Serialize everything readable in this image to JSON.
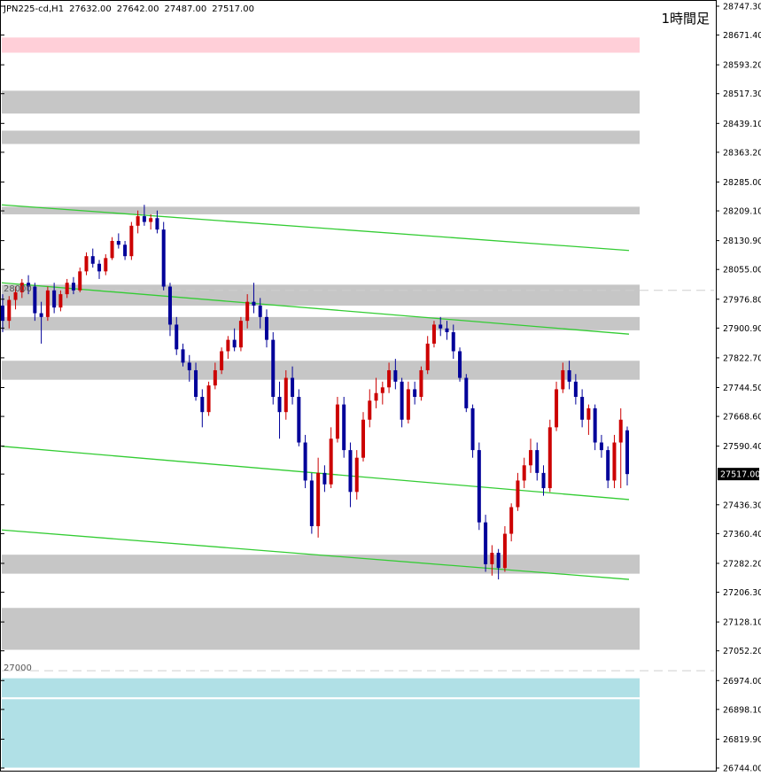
{
  "header": {
    "symbol": "JPN225-cd,H1",
    "open": "27632.00",
    "high": "27642.00",
    "low": "27487.00",
    "close": "27517.00"
  },
  "timeframe_label": "1時間足",
  "level_labels": {
    "upper": "28000",
    "lower": "27000"
  },
  "current_price": "27517.00",
  "colors": {
    "bull": "#cc0000",
    "bear": "#000099",
    "doji": "#33aa33",
    "channel": "#33cc33",
    "zone_gray": "#c6c6c6",
    "zone_pink": "#ffcfd8",
    "zone_blue": "#b0e0e6",
    "dashed": "#cfcfcf"
  },
  "chart_data": {
    "type": "candlestick",
    "symbol": "JPN225-cd",
    "timeframe": "H1",
    "ylim": [
      26744.0,
      28747.3
    ],
    "y_ticks": [
      "28747.30",
      "28671.40",
      "28593.20",
      "28517.30",
      "28439.10",
      "28363.20",
      "28285.00",
      "28209.10",
      "28130.90",
      "28055.00",
      "27976.80",
      "27900.90",
      "27822.70",
      "27744.50",
      "27668.60",
      "27590.40",
      "27517.00",
      "27436.30",
      "27360.40",
      "27282.20",
      "27206.30",
      "27128.10",
      "27052.20",
      "26974.00",
      "26898.10",
      "26819.90",
      "26744.00"
    ],
    "horizontal_levels": [
      28000,
      27000
    ],
    "zones": [
      {
        "low": 28625,
        "high": 28665,
        "color": "pink"
      },
      {
        "low": 28465,
        "high": 28525,
        "color": "gray"
      },
      {
        "low": 28385,
        "high": 28420,
        "color": "gray"
      },
      {
        "low": 28200,
        "high": 28220,
        "color": "gray"
      },
      {
        "low": 27960,
        "high": 28015,
        "color": "gray"
      },
      {
        "low": 27895,
        "high": 27930,
        "color": "gray"
      },
      {
        "low": 27765,
        "high": 27815,
        "color": "gray"
      },
      {
        "low": 27255,
        "high": 27305,
        "color": "gray"
      },
      {
        "low": 27055,
        "high": 27165,
        "color": "gray"
      },
      {
        "low": 26745,
        "high": 26925,
        "color": "blue"
      },
      {
        "low": 26930,
        "high": 26980,
        "color": "blue"
      }
    ],
    "channel_lines": [
      {
        "from": 28225,
        "to": 28105
      },
      {
        "from": 28020,
        "to": 27885
      },
      {
        "from": 27590,
        "to": 27450
      },
      {
        "from": 27370,
        "to": 27240
      }
    ],
    "candles": [
      {
        "o": 27960,
        "h": 27990,
        "l": 27890,
        "c": 27920
      },
      {
        "o": 27920,
        "h": 27985,
        "l": 27900,
        "c": 27975
      },
      {
        "o": 27975,
        "h": 28010,
        "l": 27950,
        "c": 27995
      },
      {
        "o": 27995,
        "h": 28030,
        "l": 27980,
        "c": 28020
      },
      {
        "o": 28020,
        "h": 28040,
        "l": 27990,
        "c": 28010
      },
      {
        "o": 28010,
        "h": 28020,
        "l": 27920,
        "c": 27940
      },
      {
        "o": 27940,
        "h": 27970,
        "l": 27860,
        "c": 27930
      },
      {
        "o": 27930,
        "h": 28010,
        "l": 27920,
        "c": 28000
      },
      {
        "o": 28000,
        "h": 28020,
        "l": 27940,
        "c": 27955
      },
      {
        "o": 27955,
        "h": 28000,
        "l": 27945,
        "c": 27990
      },
      {
        "o": 27990,
        "h": 28030,
        "l": 27980,
        "c": 28020
      },
      {
        "o": 28020,
        "h": 28035,
        "l": 27990,
        "c": 28000
      },
      {
        "o": 28000,
        "h": 28060,
        "l": 27995,
        "c": 28050
      },
      {
        "o": 28050,
        "h": 28100,
        "l": 28040,
        "c": 28090
      },
      {
        "o": 28090,
        "h": 28110,
        "l": 28060,
        "c": 28070
      },
      {
        "o": 28070,
        "h": 28080,
        "l": 28030,
        "c": 28050
      },
      {
        "o": 28050,
        "h": 28095,
        "l": 28040,
        "c": 28085
      },
      {
        "o": 28085,
        "h": 28140,
        "l": 28080,
        "c": 28130
      },
      {
        "o": 28130,
        "h": 28150,
        "l": 28110,
        "c": 28120
      },
      {
        "o": 28120,
        "h": 28130,
        "l": 28080,
        "c": 28090
      },
      {
        "o": 28090,
        "h": 28180,
        "l": 28080,
        "c": 28170
      },
      {
        "o": 28170,
        "h": 28210,
        "l": 28150,
        "c": 28195
      },
      {
        "o": 28195,
        "h": 28225,
        "l": 28170,
        "c": 28180
      },
      {
        "o": 28180,
        "h": 28200,
        "l": 28160,
        "c": 28190
      },
      {
        "o": 28190,
        "h": 28210,
        "l": 28150,
        "c": 28160
      },
      {
        "o": 28160,
        "h": 28180,
        "l": 28000,
        "c": 28010
      },
      {
        "o": 28010,
        "h": 28020,
        "l": 27880,
        "c": 27910
      },
      {
        "o": 27910,
        "h": 27930,
        "l": 27830,
        "c": 27845
      },
      {
        "o": 27845,
        "h": 27860,
        "l": 27800,
        "c": 27810
      },
      {
        "o": 27810,
        "h": 27830,
        "l": 27760,
        "c": 27790
      },
      {
        "o": 27790,
        "h": 27810,
        "l": 27710,
        "c": 27720
      },
      {
        "o": 27720,
        "h": 27740,
        "l": 27640,
        "c": 27680
      },
      {
        "o": 27680,
        "h": 27760,
        "l": 27670,
        "c": 27750
      },
      {
        "o": 27750,
        "h": 27810,
        "l": 27740,
        "c": 27790
      },
      {
        "o": 27790,
        "h": 27850,
        "l": 27780,
        "c": 27840
      },
      {
        "o": 27840,
        "h": 27880,
        "l": 27820,
        "c": 27870
      },
      {
        "o": 27870,
        "h": 27900,
        "l": 27840,
        "c": 27850
      },
      {
        "o": 27850,
        "h": 27930,
        "l": 27840,
        "c": 27920
      },
      {
        "o": 27920,
        "h": 27990,
        "l": 27900,
        "c": 27970
      },
      {
        "o": 27970,
        "h": 28020,
        "l": 27940,
        "c": 27960
      },
      {
        "o": 27960,
        "h": 27980,
        "l": 27900,
        "c": 27930
      },
      {
        "o": 27930,
        "h": 27950,
        "l": 27850,
        "c": 27870
      },
      {
        "o": 27870,
        "h": 27890,
        "l": 27700,
        "c": 27720
      },
      {
        "o": 27720,
        "h": 27760,
        "l": 27610,
        "c": 27680
      },
      {
        "o": 27680,
        "h": 27790,
        "l": 27660,
        "c": 27770
      },
      {
        "o": 27770,
        "h": 27800,
        "l": 27700,
        "c": 27720
      },
      {
        "o": 27720,
        "h": 27740,
        "l": 27590,
        "c": 27600
      },
      {
        "o": 27600,
        "h": 27620,
        "l": 27480,
        "c": 27500
      },
      {
        "o": 27500,
        "h": 27520,
        "l": 27360,
        "c": 27380
      },
      {
        "o": 27380,
        "h": 27560,
        "l": 27350,
        "c": 27520
      },
      {
        "o": 27520,
        "h": 27540,
        "l": 27470,
        "c": 27490
      },
      {
        "o": 27490,
        "h": 27640,
        "l": 27480,
        "c": 27610
      },
      {
        "o": 27610,
        "h": 27720,
        "l": 27600,
        "c": 27700
      },
      {
        "o": 27700,
        "h": 27720,
        "l": 27560,
        "c": 27580
      },
      {
        "o": 27580,
        "h": 27600,
        "l": 27430,
        "c": 27470
      },
      {
        "o": 27470,
        "h": 27580,
        "l": 27450,
        "c": 27560
      },
      {
        "o": 27560,
        "h": 27680,
        "l": 27550,
        "c": 27660
      },
      {
        "o": 27660,
        "h": 27740,
        "l": 27640,
        "c": 27710
      },
      {
        "o": 27710,
        "h": 27770,
        "l": 27690,
        "c": 27730
      },
      {
        "o": 27730,
        "h": 27760,
        "l": 27700,
        "c": 27745
      },
      {
        "o": 27745,
        "h": 27810,
        "l": 27730,
        "c": 27790
      },
      {
        "o": 27790,
        "h": 27820,
        "l": 27740,
        "c": 27760
      },
      {
        "o": 27760,
        "h": 27770,
        "l": 27640,
        "c": 27660
      },
      {
        "o": 27660,
        "h": 27760,
        "l": 27650,
        "c": 27740
      },
      {
        "o": 27740,
        "h": 27760,
        "l": 27700,
        "c": 27720
      },
      {
        "o": 27720,
        "h": 27800,
        "l": 27710,
        "c": 27790
      },
      {
        "o": 27790,
        "h": 27880,
        "l": 27780,
        "c": 27860
      },
      {
        "o": 27860,
        "h": 27920,
        "l": 27850,
        "c": 27910
      },
      {
        "o": 27910,
        "h": 27930,
        "l": 27880,
        "c": 27900
      },
      {
        "o": 27900,
        "h": 27920,
        "l": 27870,
        "c": 27890
      },
      {
        "o": 27890,
        "h": 27910,
        "l": 27820,
        "c": 27840
      },
      {
        "o": 27840,
        "h": 27850,
        "l": 27760,
        "c": 27770
      },
      {
        "o": 27770,
        "h": 27780,
        "l": 27680,
        "c": 27690
      },
      {
        "o": 27690,
        "h": 27700,
        "l": 27560,
        "c": 27580
      },
      {
        "o": 27580,
        "h": 27600,
        "l": 27370,
        "c": 27390
      },
      {
        "o": 27390,
        "h": 27410,
        "l": 27260,
        "c": 27280
      },
      {
        "o": 27280,
        "h": 27330,
        "l": 27250,
        "c": 27310
      },
      {
        "o": 27310,
        "h": 27320,
        "l": 27240,
        "c": 27270
      },
      {
        "o": 27270,
        "h": 27380,
        "l": 27260,
        "c": 27360
      },
      {
        "o": 27360,
        "h": 27440,
        "l": 27340,
        "c": 27430
      },
      {
        "o": 27430,
        "h": 27520,
        "l": 27420,
        "c": 27500
      },
      {
        "o": 27500,
        "h": 27560,
        "l": 27480,
        "c": 27540
      },
      {
        "o": 27540,
        "h": 27610,
        "l": 27520,
        "c": 27580
      },
      {
        "o": 27580,
        "h": 27600,
        "l": 27500,
        "c": 27520
      },
      {
        "o": 27520,
        "h": 27540,
        "l": 27460,
        "c": 27480
      },
      {
        "o": 27480,
        "h": 27660,
        "l": 27470,
        "c": 27640
      },
      {
        "o": 27640,
        "h": 27760,
        "l": 27630,
        "c": 27740
      },
      {
        "o": 27740,
        "h": 27810,
        "l": 27730,
        "c": 27790
      },
      {
        "o": 27790,
        "h": 27815,
        "l": 27740,
        "c": 27760
      },
      {
        "o": 27760,
        "h": 27780,
        "l": 27700,
        "c": 27720
      },
      {
        "o": 27720,
        "h": 27740,
        "l": 27640,
        "c": 27660
      },
      {
        "o": 27660,
        "h": 27700,
        "l": 27620,
        "c": 27690
      },
      {
        "o": 27690,
        "h": 27700,
        "l": 27580,
        "c": 27600
      },
      {
        "o": 27600,
        "h": 27620,
        "l": 27560,
        "c": 27580
      },
      {
        "o": 27580,
        "h": 27590,
        "l": 27480,
        "c": 27500
      },
      {
        "o": 27500,
        "h": 27620,
        "l": 27480,
        "c": 27600
      },
      {
        "o": 27600,
        "h": 27690,
        "l": 27480,
        "c": 27660
      },
      {
        "o": 27632,
        "h": 27642,
        "l": 27487,
        "c": 27517
      }
    ]
  }
}
